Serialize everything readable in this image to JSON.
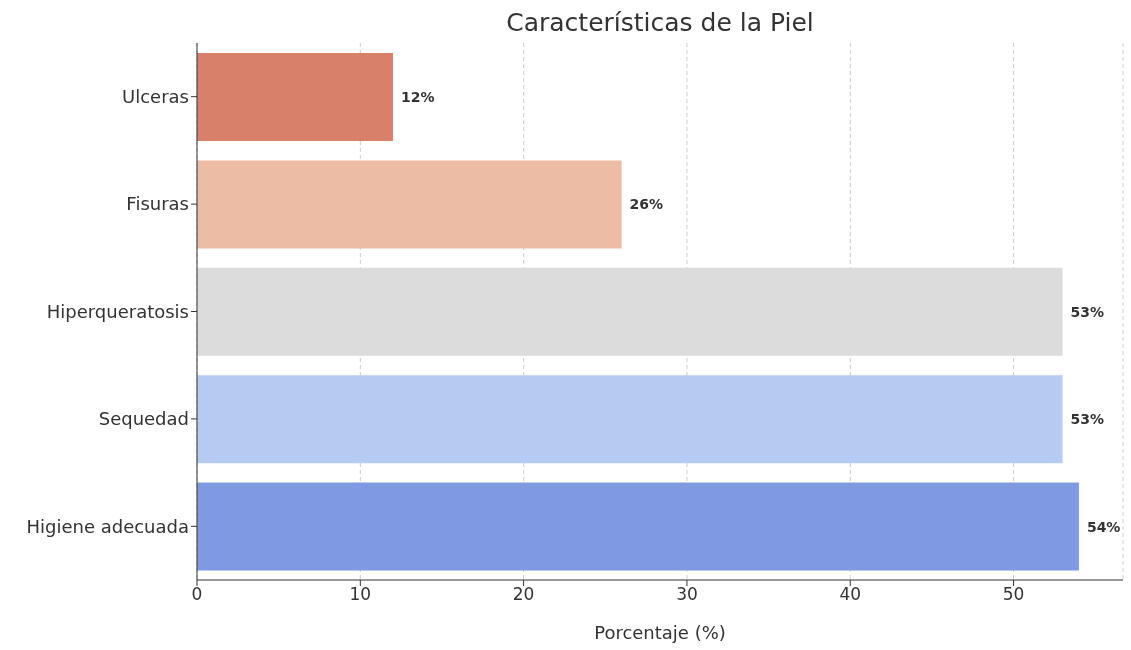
{
  "chart_data": {
    "type": "bar",
    "orientation": "horizontal",
    "title": "Características de la Piel",
    "xlabel": "Porcentaje (%)",
    "categories": [
      "Ulceras",
      "Fisuras",
      "Hiperqueratosis",
      "Sequedad",
      "Higiene adecuada"
    ],
    "values": [
      12,
      26,
      53,
      53,
      54
    ],
    "value_labels": [
      "12%",
      "26%",
      "53%",
      "53%",
      "54%"
    ],
    "colors": [
      "#d9806b",
      "#ecbca5",
      "#dcdcdc",
      "#b6cbf2",
      "#7f9ae3"
    ],
    "xlim": [
      0,
      56.7
    ],
    "xticks": [
      0,
      10,
      20,
      30,
      40,
      50
    ],
    "grid": "x"
  }
}
